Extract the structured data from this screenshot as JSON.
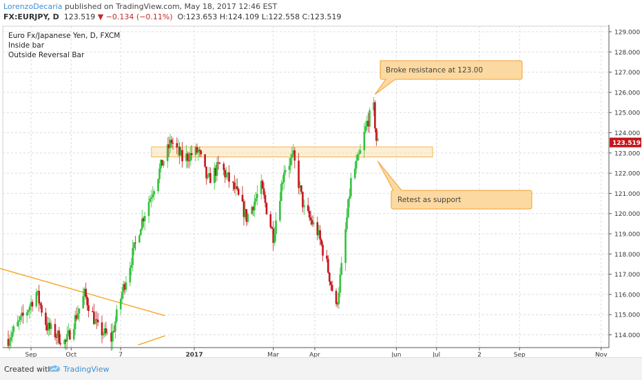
{
  "header": {
    "author": "LorenzoDecaria",
    "published": " published on TradingView.com, May 18, 2017 12:46 EST",
    "symbol": "FX:EURJPY, D",
    "price": "123.519",
    "change_arrow": "▼",
    "change": "−0.134 (−0.11%)",
    "open": "O:123.653",
    "high": "H:124.109",
    "low": "L:122.558",
    "close": "C:123.519"
  },
  "legend": {
    "title": "Euro Fx/Japanese Yen, D, FXCM",
    "line2": "Inside bar",
    "line3": "Outside Reversal Bar"
  },
  "footer": {
    "created_label": "Created with",
    "brand": "TradingView"
  },
  "colors": {
    "up": "#34c13c",
    "down": "#c4161c",
    "grid": "#dcdcdc",
    "trendline": "#f5a623",
    "zone_fill": "#fbe0b4",
    "zone_stroke": "#f5a623",
    "callout_fill": "#fcd9a0",
    "callout_stroke": "#f0a030",
    "price_tag": "#c4161c"
  },
  "chart_data": {
    "type": "candlestick",
    "title": "Euro Fx/Japanese Yen, D, FXCM",
    "y_range": [
      113.5,
      129.3
    ],
    "y_ticks": [
      "114.000",
      "115.000",
      "116.000",
      "117.000",
      "118.000",
      "119.000",
      "120.000",
      "121.000",
      "122.000",
      "123.000",
      "124.000",
      "125.000",
      "126.000",
      "127.000",
      "128.000",
      "129.000"
    ],
    "x_ticks": [
      "Sep",
      "Oct",
      "7",
      "2017",
      "Mar",
      "Apr",
      "Jun",
      "Jul",
      "2",
      "Sep",
      "Nov"
    ],
    "last_price": "123.519",
    "anchors": [
      [
        "2016-08-15",
        113.8
      ],
      [
        "2016-08-29",
        115.2
      ],
      [
        "2016-09-05",
        116.1
      ],
      [
        "2016-09-13",
        114.4
      ],
      [
        "2016-09-27",
        113.6
      ],
      [
        "2016-10-11",
        116.0
      ],
      [
        "2016-10-21",
        114.3
      ],
      [
        "2016-10-31",
        113.8
      ],
      [
        "2016-11-08",
        116.1
      ],
      [
        "2016-11-14",
        117.5
      ],
      [
        "2016-11-22",
        119.5
      ],
      [
        "2016-11-30",
        121.0
      ],
      [
        "2016-12-08",
        122.5
      ],
      [
        "2016-12-15",
        123.6
      ],
      [
        "2016-12-23",
        122.7
      ],
      [
        "2017-01-04",
        123.1
      ],
      [
        "2017-01-11",
        121.6
      ],
      [
        "2017-01-20",
        122.4
      ],
      [
        "2017-02-01",
        121.1
      ],
      [
        "2017-02-09",
        119.8
      ],
      [
        "2017-02-20",
        121.3
      ],
      [
        "2017-03-01",
        118.9
      ],
      [
        "2017-03-09",
        122.2
      ],
      [
        "2017-03-16",
        122.8
      ],
      [
        "2017-03-24",
        120.2
      ],
      [
        "2017-04-03",
        119.1
      ],
      [
        "2017-04-10",
        117.5
      ],
      [
        "2017-04-17",
        115.3
      ],
      [
        "2017-04-21",
        117.3
      ],
      [
        "2017-04-28",
        121.6
      ],
      [
        "2017-05-05",
        123.0
      ],
      [
        "2017-05-10",
        124.5
      ],
      [
        "2017-05-15",
        125.2
      ],
      [
        "2017-05-17",
        123.65
      ],
      [
        "2017-05-18",
        123.519
      ]
    ],
    "annotations": [
      {
        "text": "Broke resistance at 123.00",
        "date": "2017-05-16",
        "price": 125.9
      },
      {
        "text": "Retest as support",
        "date": "2017-05-18",
        "price": 122.6
      }
    ],
    "resistance_zone": {
      "from": "2016-11-30",
      "to": "2017-06-28",
      "low": 122.8,
      "high": 123.3
    },
    "trendlines": [
      {
        "from": [
          "2016-08-08",
          117.3
        ],
        "to": [
          "2016-12-10",
          114.95
        ]
      },
      {
        "from": [
          "2016-11-20",
          113.5
        ],
        "to": [
          "2016-12-10",
          113.95
        ]
      }
    ]
  }
}
